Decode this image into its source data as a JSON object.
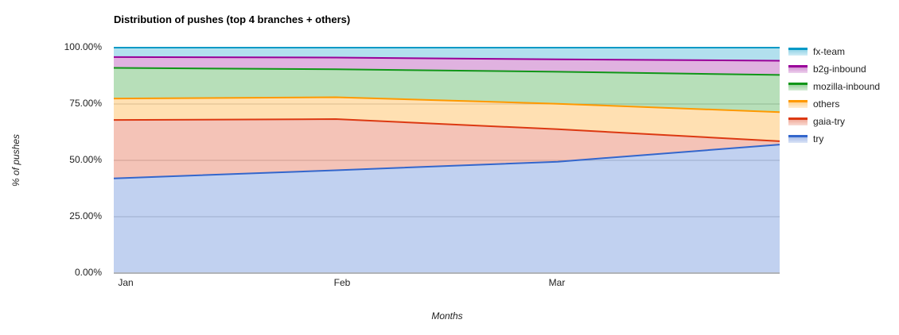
{
  "title": "Distribution of pushes (top 4 branches + others)",
  "axes": {
    "y_label": "% of pushes",
    "x_label": "Months",
    "y_ticks": [
      "100.00%",
      "75.00%",
      "50.00%",
      "25.00%",
      "0.00%"
    ],
    "x_ticks": [
      "Jan",
      "Feb",
      "Mar"
    ]
  },
  "legend": {
    "position": "right",
    "items": [
      {
        "label": "fx-team",
        "color": "#0099C6"
      },
      {
        "label": "b2g-inbound",
        "color": "#990099"
      },
      {
        "label": "mozilla-inbound",
        "color": "#109618"
      },
      {
        "label": "others",
        "color": "#FF9900"
      },
      {
        "label": "gaia-try",
        "color": "#DC3912"
      },
      {
        "label": "try",
        "color": "#3366CC"
      }
    ]
  },
  "chart_data": {
    "type": "area",
    "stacked": true,
    "title": "Distribution of pushes (top 4 branches + others)",
    "xlabel": "Months",
    "ylabel": "% of pushes",
    "x": [
      "Jan",
      "Feb",
      "Mar",
      ""
    ],
    "x_note": "fourth data point sits at the right plot edge and has no tick label",
    "ylim": [
      0,
      100
    ],
    "y_tick_values": [
      0,
      25,
      50,
      75,
      100
    ],
    "grid": true,
    "fill_opacity": 0.3,
    "line_width": 2,
    "legend_position": "right",
    "stacking_order": "bottom-to-top",
    "series": [
      {
        "name": "try",
        "color": "#3366CC",
        "values": [
          42.0,
          45.6,
          49.4,
          57.0
        ]
      },
      {
        "name": "gaia-try",
        "color": "#DC3912",
        "values": [
          25.9,
          22.7,
          14.4,
          1.5
        ]
      },
      {
        "name": "others",
        "color": "#FF9900",
        "values": [
          9.5,
          9.7,
          11.3,
          12.9
        ]
      },
      {
        "name": "mozilla-inbound",
        "color": "#109618",
        "values": [
          13.6,
          12.4,
          14.2,
          16.5
        ]
      },
      {
        "name": "b2g-inbound",
        "color": "#990099",
        "values": [
          4.8,
          5.2,
          5.5,
          6.3
        ]
      },
      {
        "name": "fx-team",
        "color": "#0099C6",
        "values": [
          4.2,
          4.4,
          5.2,
          5.8
        ]
      }
    ]
  },
  "colors": {
    "background": "#ffffff",
    "gridline": "#cccccc",
    "baseline": "#b0b3b8",
    "text": "#222222",
    "title_color": "#000000"
  }
}
